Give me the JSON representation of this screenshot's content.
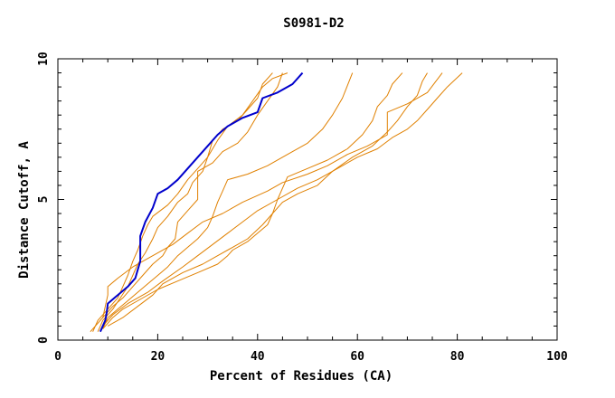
{
  "chart_data": {
    "type": "line",
    "title": "S0981-D2",
    "xlabel": "Percent of Residues (CA)",
    "ylabel": "Distance Cutoff, A",
    "xlim": [
      0,
      100
    ],
    "ylim": [
      0,
      10
    ],
    "x_ticks": [
      "0",
      "20",
      "40",
      "60",
      "80",
      "100"
    ],
    "y_ticks": [
      "0",
      "5",
      "10"
    ],
    "grid": false,
    "legend": "none",
    "colors": {
      "highlight": "#0000cc",
      "others": "#e08000"
    },
    "series": [
      {
        "highlight": true,
        "points": [
          [
            8.5,
            0.3
          ],
          [
            9.5,
            0.7
          ],
          [
            9.8,
            1.0
          ],
          [
            10,
            1.3
          ],
          [
            12,
            1.6
          ],
          [
            14,
            1.9
          ],
          [
            15.5,
            2.2
          ],
          [
            16,
            2.5
          ],
          [
            16.5,
            2.8
          ],
          [
            16.5,
            3.2
          ],
          [
            16.5,
            3.7
          ],
          [
            17.5,
            4.2
          ],
          [
            19,
            4.7
          ],
          [
            20,
            5.2
          ],
          [
            22,
            5.4
          ],
          [
            24,
            5.7
          ],
          [
            26,
            6.1
          ],
          [
            28,
            6.5
          ],
          [
            30,
            6.9
          ],
          [
            32,
            7.3
          ],
          [
            34,
            7.6
          ],
          [
            37,
            7.9
          ],
          [
            40,
            8.1
          ],
          [
            41,
            8.6
          ],
          [
            44,
            8.8
          ],
          [
            47,
            9.1
          ],
          [
            49,
            9.5
          ]
        ]
      },
      {
        "points": [
          [
            7,
            0.3
          ],
          [
            8,
            0.7
          ],
          [
            10,
            1.1
          ],
          [
            12,
            1.5
          ],
          [
            13,
            1.9
          ],
          [
            14,
            2.3
          ],
          [
            15,
            2.8
          ],
          [
            16,
            3.2
          ],
          [
            17,
            3.7
          ],
          [
            18,
            4.1
          ],
          [
            19,
            4.4
          ],
          [
            22,
            4.8
          ],
          [
            24,
            5.2
          ],
          [
            26,
            5.7
          ],
          [
            28,
            6.1
          ],
          [
            30,
            6.5
          ],
          [
            32,
            7.1
          ],
          [
            34,
            7.6
          ],
          [
            37,
            8.0
          ],
          [
            39,
            8.5
          ],
          [
            41,
            9.0
          ],
          [
            43,
            9.3
          ],
          [
            46,
            9.5
          ]
        ]
      },
      {
        "points": [
          [
            8,
            0.3
          ],
          [
            9,
            0.7
          ],
          [
            11,
            1.1
          ],
          [
            12.5,
            1.5
          ],
          [
            14,
            1.9
          ],
          [
            15,
            2.3
          ],
          [
            16,
            2.7
          ],
          [
            17.5,
            3.1
          ],
          [
            19,
            3.6
          ],
          [
            20,
            4.0
          ],
          [
            22,
            4.4
          ],
          [
            24,
            4.9
          ],
          [
            26,
            5.2
          ],
          [
            27,
            5.6
          ],
          [
            29,
            6.0
          ],
          [
            30,
            6.5
          ],
          [
            31,
            7.1
          ],
          [
            33,
            7.5
          ],
          [
            36,
            7.8
          ],
          [
            38,
            8.2
          ],
          [
            40,
            8.6
          ],
          [
            41,
            9.1
          ],
          [
            43,
            9.5
          ]
        ]
      },
      {
        "points": [
          [
            6.5,
            0.3
          ],
          [
            9,
            0.8
          ],
          [
            11,
            1.2
          ],
          [
            13,
            1.5
          ],
          [
            15,
            1.9
          ],
          [
            17,
            2.3
          ],
          [
            19,
            2.7
          ],
          [
            21,
            3.0
          ],
          [
            22,
            3.3
          ],
          [
            23.5,
            3.6
          ],
          [
            24,
            4.2
          ],
          [
            26,
            4.6
          ],
          [
            28,
            5.0
          ],
          [
            28,
            5.4
          ],
          [
            28,
            5.7
          ],
          [
            28,
            6.0
          ],
          [
            31,
            6.3
          ],
          [
            33,
            6.7
          ],
          [
            36,
            7.0
          ],
          [
            38,
            7.4
          ],
          [
            40,
            8.0
          ],
          [
            42,
            8.5
          ],
          [
            44,
            9.0
          ],
          [
            45,
            9.5
          ]
        ]
      },
      {
        "points": [
          [
            9,
            0.4
          ],
          [
            10,
            0.8
          ],
          [
            12,
            1.1
          ],
          [
            14,
            1.4
          ],
          [
            16,
            1.7
          ],
          [
            18,
            2.0
          ],
          [
            20,
            2.3
          ],
          [
            22,
            2.6
          ],
          [
            24,
            3.0
          ],
          [
            26,
            3.3
          ],
          [
            28,
            3.6
          ],
          [
            30,
            4.0
          ],
          [
            31,
            4.4
          ],
          [
            32,
            4.9
          ],
          [
            33,
            5.3
          ],
          [
            34,
            5.7
          ],
          [
            38,
            5.9
          ],
          [
            42,
            6.2
          ],
          [
            46,
            6.6
          ],
          [
            50,
            7.0
          ],
          [
            53,
            7.5
          ],
          [
            55,
            8.0
          ],
          [
            57,
            8.6
          ],
          [
            59,
            9.5
          ]
        ]
      },
      {
        "points": [
          [
            9,
            0.4
          ],
          [
            11,
            0.8
          ],
          [
            13,
            1.1
          ],
          [
            16,
            1.4
          ],
          [
            20,
            1.8
          ],
          [
            24,
            2.1
          ],
          [
            28,
            2.4
          ],
          [
            32,
            2.7
          ],
          [
            34,
            3.0
          ],
          [
            35,
            3.2
          ],
          [
            38,
            3.5
          ],
          [
            40,
            3.8
          ],
          [
            42,
            4.1
          ],
          [
            43,
            4.5
          ],
          [
            44,
            5.0
          ],
          [
            45,
            5.4
          ],
          [
            46,
            5.8
          ],
          [
            50,
            6.1
          ],
          [
            54,
            6.4
          ],
          [
            58,
            6.8
          ],
          [
            61,
            7.3
          ],
          [
            63,
            7.8
          ],
          [
            64,
            8.3
          ],
          [
            66,
            8.7
          ],
          [
            67,
            9.1
          ],
          [
            69,
            9.5
          ]
        ]
      },
      {
        "points": [
          [
            10,
            0.5
          ],
          [
            13,
            0.8
          ],
          [
            16,
            1.2
          ],
          [
            19,
            1.6
          ],
          [
            21,
            2.0
          ],
          [
            25,
            2.4
          ],
          [
            29,
            2.7
          ],
          [
            32,
            3.0
          ],
          [
            35,
            3.3
          ],
          [
            38,
            3.6
          ],
          [
            41,
            4.1
          ],
          [
            43,
            4.5
          ],
          [
            45,
            4.9
          ],
          [
            48,
            5.2
          ],
          [
            52,
            5.5
          ],
          [
            55,
            6.0
          ],
          [
            59,
            6.5
          ],
          [
            63,
            6.9
          ],
          [
            66,
            7.4
          ],
          [
            68,
            7.8
          ],
          [
            70,
            8.3
          ],
          [
            72,
            8.7
          ],
          [
            73,
            9.2
          ],
          [
            74,
            9.5
          ]
        ]
      },
      {
        "points": [
          [
            9,
            0.5
          ],
          [
            11,
            0.9
          ],
          [
            14,
            1.3
          ],
          [
            18,
            1.7
          ],
          [
            21,
            2.1
          ],
          [
            25,
            2.6
          ],
          [
            28,
            3.0
          ],
          [
            31,
            3.4
          ],
          [
            34,
            3.8
          ],
          [
            37,
            4.2
          ],
          [
            40,
            4.6
          ],
          [
            44,
            5.0
          ],
          [
            48,
            5.4
          ],
          [
            52,
            5.7
          ],
          [
            56,
            6.1
          ],
          [
            60,
            6.5
          ],
          [
            64,
            6.8
          ],
          [
            67,
            7.2
          ],
          [
            70,
            7.5
          ],
          [
            72,
            7.8
          ],
          [
            74,
            8.2
          ],
          [
            76,
            8.6
          ],
          [
            78,
            9.0
          ],
          [
            81,
            9.5
          ]
        ]
      },
      {
        "points": [
          [
            9,
            0.8
          ],
          [
            9.5,
            1.2
          ],
          [
            10,
            1.6
          ],
          [
            10,
            1.9
          ],
          [
            12,
            2.2
          ],
          [
            15,
            2.6
          ],
          [
            19,
            3.0
          ],
          [
            23,
            3.4
          ],
          [
            26,
            3.8
          ],
          [
            29,
            4.2
          ],
          [
            33,
            4.5
          ],
          [
            37,
            4.9
          ],
          [
            42,
            5.3
          ],
          [
            45,
            5.6
          ],
          [
            50,
            5.9
          ],
          [
            54,
            6.2
          ],
          [
            58,
            6.6
          ],
          [
            62,
            6.9
          ],
          [
            66,
            7.3
          ],
          [
            66,
            7.7
          ],
          [
            66,
            8.1
          ],
          [
            70,
            8.4
          ],
          [
            74,
            8.8
          ],
          [
            77,
            9.5
          ]
        ]
      }
    ]
  }
}
